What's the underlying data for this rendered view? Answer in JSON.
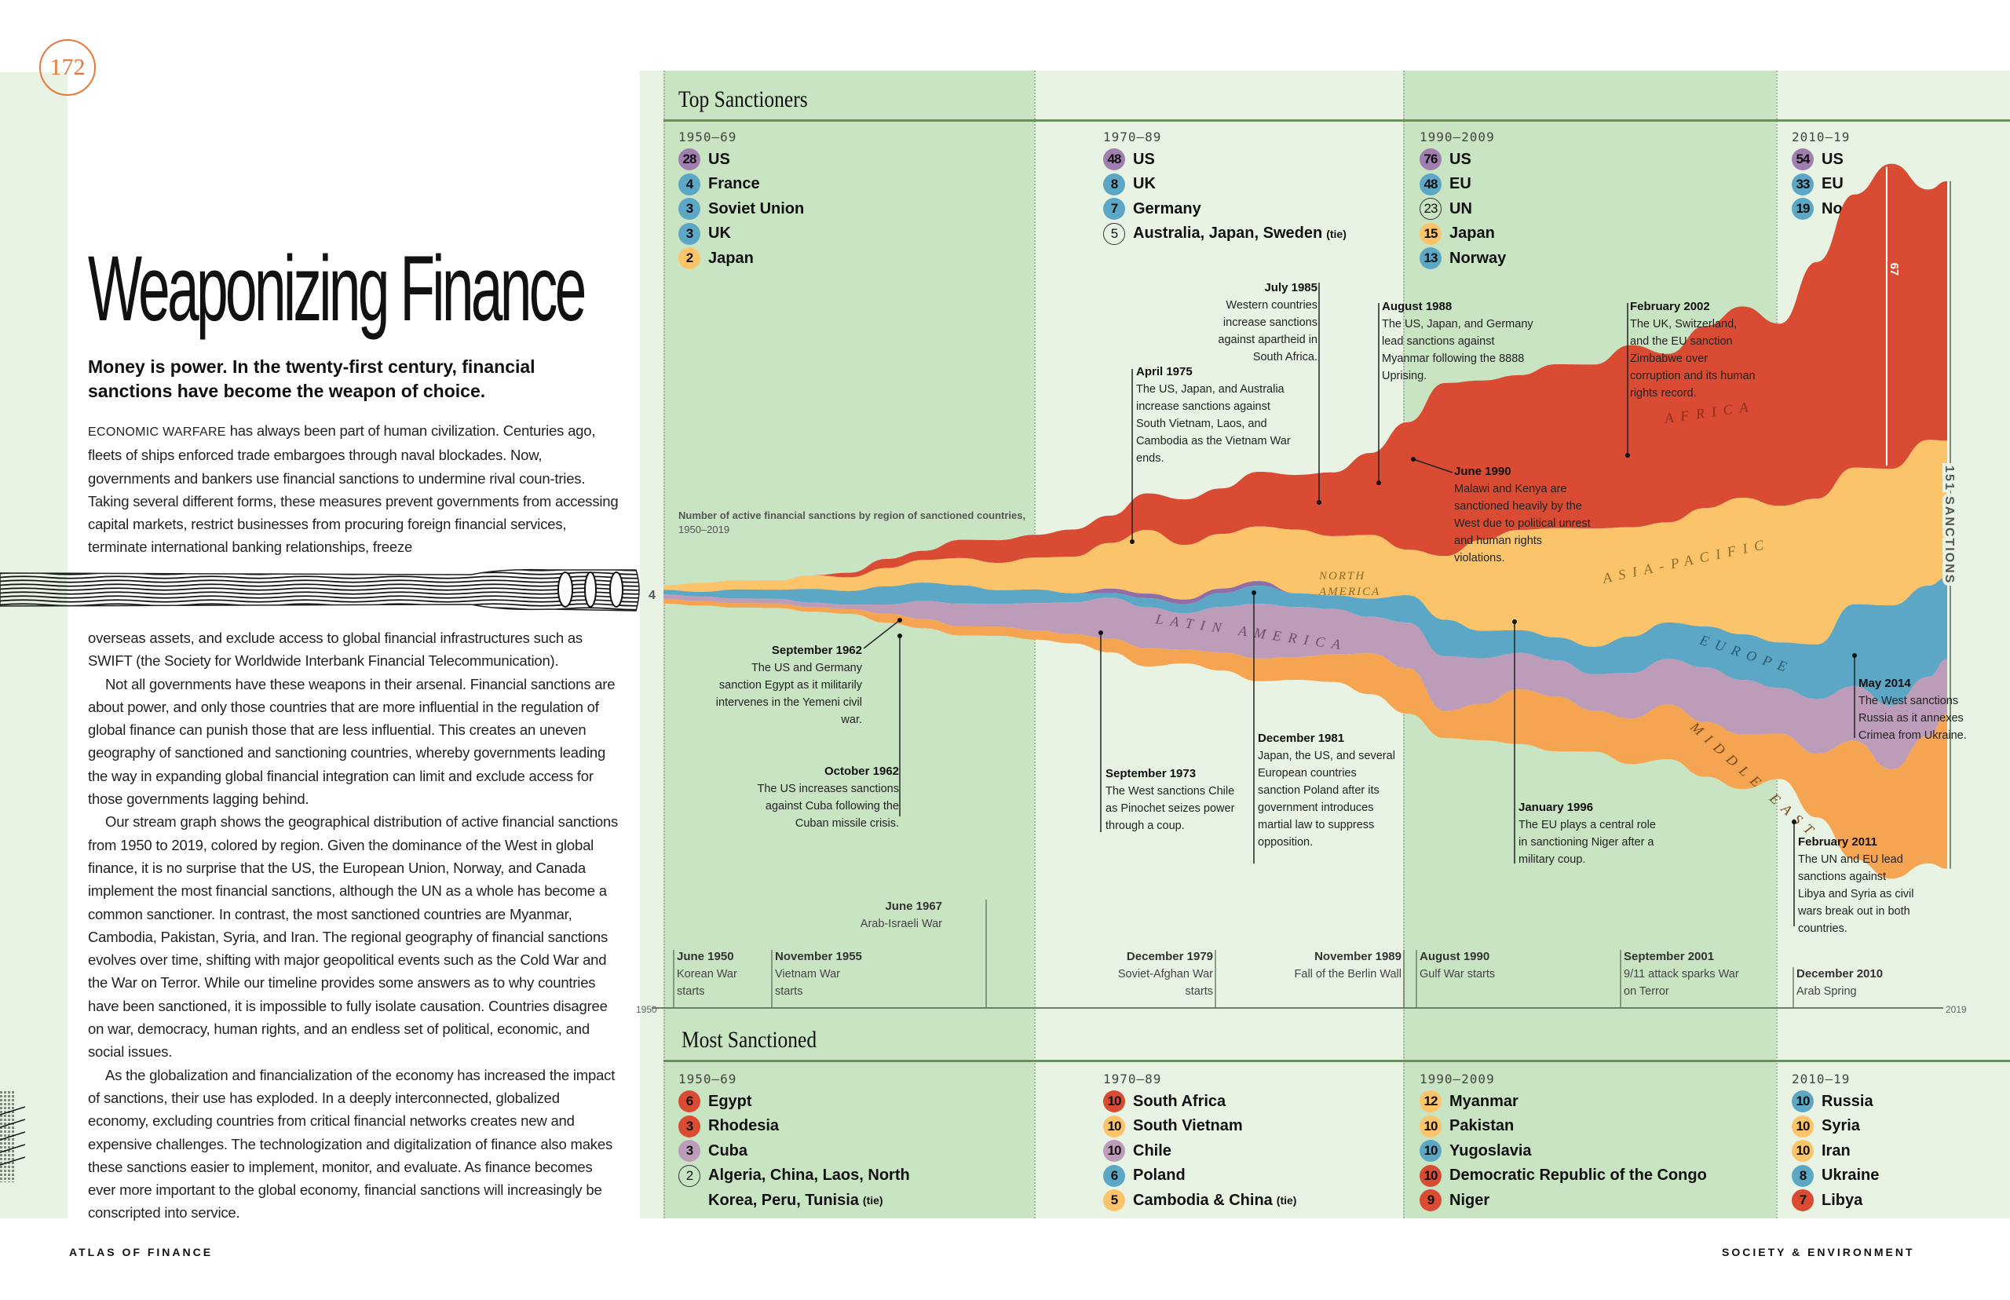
{
  "page": {
    "page_number": "172",
    "title": "Weaponizing Finance",
    "dek": "Money is power. In the twenty-first century, financial sanctions have become the weapon of choice.",
    "body_lead_smallcaps": "ECONOMIC WARFARE",
    "body_p1a": " has always been part of human civilization. Centuries ago, fleets of ships enforced trade embargoes through naval blockades. Now, governments and bankers use financial sanctions to undermine rival coun-tries. Taking several different forms, these measures prevent governments from accessing capital markets, restrict businesses from procuring foreign financial services, terminate international banking relationships, freeze",
    "body_p1b": "overseas assets, and exclude access to global financial infrastructures such as SWIFT (the Society for Worldwide Interbank Financial Telecommunication).",
    "body_p2": "Not all governments have these weapons in their arsenal. Financial sanctions are about power, and only those countries that are more influential in the regulation of global finance can punish those that are less influential. This creates an uneven geography of sanctioned and sanctioning countries, whereby governments leading the way in expanding global financial integration can limit and exclude access for those governments lagging behind.",
    "body_p3": "Our stream graph shows the geographical distribution of active financial sanctions from 1950 to 2019, colored by region. Given the dominance of the West in global finance, it is no surprise that the US, the European Union, Norway, and Canada implement the most financial sanctions, although the UN as a whole has become a common sanctioner. In contrast, the most sanctioned countries are Myanmar, Cambodia, Pakistan, Syria, and Iran. The regional geography of financial sanctions evolves over time, shifting with major geopolitical events such as the Cold War and the War on Terror. While our timeline provides some answers as to why countries have been sanctioned, it is impossible to fully isolate causation. Countries disagree on war, democracy, human rights, and an endless set of political, economic, and social issues.",
    "body_p4": "As the globalization and financialization of the economy has increased the impact of sanctions, their use has exploded. In a deeply interconnected, globalized economy, excluding countries from critical financial networks creates new and expensive challenges. The technologization and digitalization of finance also makes these sanctions easier to implement, monitor, and evaluate. As finance becomes ever more important to the global economy, financial sanctions will increasingly be conscripted into service.",
    "footer_left": "ATLAS OF FINANCE",
    "footer_right": "SOCIETY & ENVIRONMENT"
  },
  "colors": {
    "africa": "#d94b33",
    "asia_pacific": "#fcc46a",
    "north_america": "#8f6fa8",
    "europe": "#5ba7c5",
    "latin_america": "#bd9cba",
    "middle_east": "#f5a552",
    "accent_orange": "#e8773a",
    "band_dark": "#c9e4c3",
    "band_light": "#e8f3e4",
    "rule_green": "#6a8f5c"
  },
  "top_sanctioners": {
    "title": "Top Sanctioners",
    "periods": [
      {
        "label": "1950–69",
        "items": [
          {
            "count": "28",
            "name": "US",
            "color": "#a07fb0"
          },
          {
            "count": "4",
            "name": "France",
            "color": "#5ba7c5"
          },
          {
            "count": "3",
            "name": "Soviet Union",
            "color": "#5ba7c5"
          },
          {
            "count": "3",
            "name": "UK",
            "color": "#5ba7c5"
          },
          {
            "count": "2",
            "name": "Japan",
            "color": "#fcc46a"
          }
        ]
      },
      {
        "label": "1970–89",
        "items": [
          {
            "count": "48",
            "name": "US",
            "color": "#a07fb0"
          },
          {
            "count": "8",
            "name": "UK",
            "color": "#5ba7c5"
          },
          {
            "count": "7",
            "name": "Germany",
            "color": "#5ba7c5"
          },
          {
            "count": "5",
            "name": "Australia, Japan, Sweden",
            "tie": "(tie)",
            "outline": true
          }
        ]
      },
      {
        "label": "1990–2009",
        "items": [
          {
            "count": "76",
            "name": "US",
            "color": "#a07fb0"
          },
          {
            "count": "48",
            "name": "EU",
            "color": "#5ba7c5"
          },
          {
            "count": "23",
            "name": "UN",
            "outline": true
          },
          {
            "count": "15",
            "name": "Japan",
            "color": "#fcc46a"
          },
          {
            "count": "13",
            "name": "Norway",
            "color": "#5ba7c5"
          }
        ]
      },
      {
        "label": "2010–19",
        "items": [
          {
            "count": "54",
            "name": "US",
            "color": "#a07fb0"
          },
          {
            "count": "33",
            "name": "EU",
            "color": "#5ba7c5"
          },
          {
            "count": "19",
            "name": "Norway",
            "color": "#5ba7c5"
          }
        ]
      }
    ]
  },
  "most_sanctioned": {
    "title": "Most Sanctioned",
    "periods": [
      {
        "label": "1950–69",
        "items": [
          {
            "count": "6",
            "name": "Egypt",
            "color": "#d94b33"
          },
          {
            "count": "3",
            "name": "Rhodesia",
            "color": "#d94b33"
          },
          {
            "count": "3",
            "name": "Cuba",
            "color": "#bd9cba"
          },
          {
            "count": "2",
            "name": "Algeria, China, Laos, North",
            "outline": true
          },
          {
            "count": "",
            "name": "Korea, Peru, Tunisia",
            "tie": "(tie)",
            "continuation": true
          }
        ]
      },
      {
        "label": "1970–89",
        "items": [
          {
            "count": "10",
            "name": "South Africa",
            "color": "#d94b33"
          },
          {
            "count": "10",
            "name": "South Vietnam",
            "color": "#fcc46a"
          },
          {
            "count": "10",
            "name": "Chile",
            "color": "#bd9cba"
          },
          {
            "count": "6",
            "name": "Poland",
            "color": "#5ba7c5"
          },
          {
            "count": "5",
            "name": "Cambodia & China",
            "tie": "(tie)",
            "color": "#fcc46a"
          }
        ]
      },
      {
        "label": "1990–2009",
        "items": [
          {
            "count": "12",
            "name": "Myanmar",
            "color": "#fcc46a"
          },
          {
            "count": "10",
            "name": "Pakistan",
            "color": "#fcc46a"
          },
          {
            "count": "10",
            "name": "Yugoslavia",
            "color": "#5ba7c5"
          },
          {
            "count": "10",
            "name": "Democratic Republic of the Congo",
            "color": "#d94b33"
          },
          {
            "count": "9",
            "name": "Niger",
            "color": "#d94b33"
          }
        ]
      },
      {
        "label": "2010–19",
        "items": [
          {
            "count": "10",
            "name": "Russia",
            "color": "#5ba7c5"
          },
          {
            "count": "10",
            "name": "Syria",
            "color": "#fcc46a"
          },
          {
            "count": "10",
            "name": "Iran",
            "color": "#fcc46a"
          },
          {
            "count": "8",
            "name": "Ukraine",
            "color": "#5ba7c5"
          },
          {
            "count": "7",
            "name": "Libya",
            "color": "#d94b33"
          }
        ]
      }
    ]
  },
  "annotations": [
    {
      "date": "September 1962",
      "text": "The US and Germany sanction Egypt as it militarily intervenes in the Yemeni civil war."
    },
    {
      "date": "October 1962",
      "text": "The US increases sanctions against Cuba following the Cuban missile crisis."
    },
    {
      "date": "April 1975",
      "text": "The US, Japan, and Australia increase sanctions against South Vietnam, Laos, and Cambodia as the Vietnam War ends."
    },
    {
      "date": "July 1985",
      "text": "Western countries increase sanctions against apartheid in South Africa."
    },
    {
      "date": "August 1988",
      "text": "The US, Japan, and Germany lead sanctions against Myanmar following the 8888 Uprising."
    },
    {
      "date": "June 1990",
      "text": "Malawi and Kenya are sanctioned heavily by the West due to political unrest and human rights violations."
    },
    {
      "date": "February 2002",
      "text": "The UK, Switzerland, and the EU sanction Zimbabwe over corruption and its human rights record."
    },
    {
      "date": "September 1973",
      "text": "The West sanctions Chile as Pinochet seizes power through a coup."
    },
    {
      "date": "December 1981",
      "text": "Japan, the US, and several European countries sanction Poland after its government introduces martial law to suppress opposition."
    },
    {
      "date": "January 1996",
      "text": "The EU plays a central role in sanctioning Niger after a military coup."
    },
    {
      "date": "May 2014",
      "text": "The West sanctions Russia as it annexes Crimea from Ukraine."
    },
    {
      "date": "February 2011",
      "text": "The UN and EU lead sanctions against Libya and Syria as civil wars break out in both countries."
    }
  ],
  "timeline_events": [
    {
      "date": "June 1950",
      "text": "Korean War starts"
    },
    {
      "date": "November 1955",
      "text": "Vietnam War starts"
    },
    {
      "date": "June 1967",
      "text": "Arab-Israeli War"
    },
    {
      "date": "December 1979",
      "text": "Soviet-Afghan War starts"
    },
    {
      "date": "November 1989",
      "text": "Fall of the Berlin Wall"
    },
    {
      "date": "August 1990",
      "text": "Gulf War starts"
    },
    {
      "date": "September 2001",
      "text": "9/11 attack sparks War on Terror"
    },
    {
      "date": "December 2010",
      "text": "Arab Spring"
    }
  ],
  "chart_data": {
    "type": "area",
    "subtype": "streamgraph",
    "title": "Number of active financial sanctions by region of sanctioned countries,",
    "title_years": "1950–2019",
    "x_start_label": "1950",
    "x_end_label": "2019",
    "start_total_label": "4",
    "total_label": "151 SANCTIONS",
    "africa_2016_label": "67",
    "region_labels": [
      "AFRICA",
      "ASIA-PACIFIC",
      "NORTH AMERICA",
      "EUROPE",
      "LATIN AMERICA",
      "MIDDLE EAST"
    ],
    "x": [
      1950,
      1952,
      1954,
      1956,
      1958,
      1960,
      1962,
      1964,
      1966,
      1968,
      1970,
      1972,
      1974,
      1976,
      1978,
      1980,
      1982,
      1984,
      1986,
      1988,
      1990,
      1992,
      1994,
      1996,
      1998,
      2000,
      2002,
      2004,
      2006,
      2008,
      2010,
      2012,
      2014,
      2016,
      2018,
      2019
    ],
    "series": [
      {
        "name": "Africa",
        "values": [
          0,
          0,
          0,
          0,
          0,
          1,
          2,
          2,
          4,
          5,
          5,
          6,
          6,
          8,
          10,
          10,
          12,
          12,
          14,
          18,
          28,
          38,
          35,
          34,
          36,
          36,
          40,
          37,
          40,
          42,
          40,
          52,
          60,
          67,
          55,
          57
        ]
      },
      {
        "name": "Asia-Pacific",
        "values": [
          1,
          2,
          2,
          2,
          3,
          3,
          4,
          5,
          6,
          6,
          7,
          8,
          10,
          14,
          12,
          12,
          12,
          14,
          13,
          14,
          10,
          14,
          20,
          22,
          24,
          26,
          24,
          22,
          26,
          30,
          30,
          32,
          30,
          30,
          32,
          30
        ]
      },
      {
        "name": "North America",
        "values": [
          0,
          0,
          0,
          0,
          0,
          0,
          0,
          0,
          0,
          0,
          0,
          0,
          1,
          1,
          1,
          1,
          1,
          0,
          0,
          0,
          0,
          0,
          0,
          0,
          0,
          0,
          0,
          0,
          0,
          0,
          0,
          0,
          0,
          0,
          0,
          0
        ]
      },
      {
        "name": "Europe",
        "values": [
          1,
          1,
          2,
          2,
          3,
          3,
          4,
          4,
          4,
          3,
          3,
          2,
          1,
          2,
          2,
          3,
          4,
          3,
          3,
          4,
          6,
          8,
          6,
          5,
          5,
          6,
          8,
          8,
          9,
          10,
          10,
          12,
          18,
          22,
          20,
          18
        ]
      },
      {
        "name": "Latin America",
        "values": [
          1,
          1,
          1,
          1,
          1,
          1,
          2,
          4,
          5,
          5,
          6,
          7,
          9,
          9,
          8,
          10,
          12,
          11,
          10,
          8,
          10,
          12,
          10,
          8,
          8,
          8,
          10,
          10,
          12,
          12,
          10,
          12,
          12,
          14,
          13,
          12
        ]
      },
      {
        "name": "Middle East",
        "values": [
          1,
          1,
          1,
          1,
          1,
          1,
          2,
          2,
          2,
          2,
          2,
          2,
          3,
          4,
          3,
          4,
          5,
          5,
          6,
          9,
          10,
          6,
          8,
          12,
          12,
          9,
          10,
          12,
          12,
          12,
          10,
          14,
          26,
          24,
          28,
          34
        ]
      }
    ]
  }
}
